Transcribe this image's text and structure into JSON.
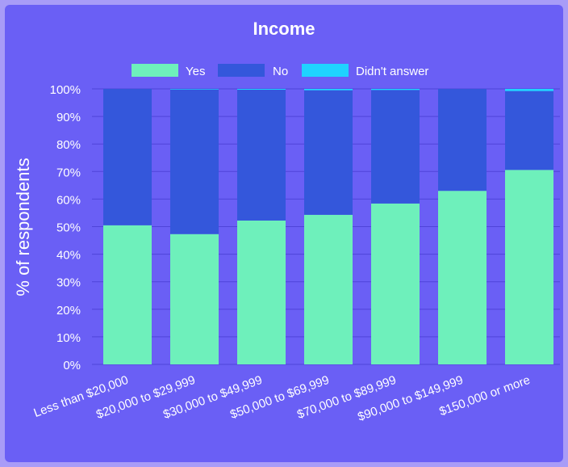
{
  "chart_data": {
    "type": "bar",
    "stacked": true,
    "title": "Income",
    "xlabel": "",
    "ylabel": "% of respondents",
    "ylim": [
      0,
      100
    ],
    "yticks": [
      "0%",
      "10%",
      "20%",
      "30%",
      "40%",
      "50%",
      "60%",
      "70%",
      "80%",
      "90%",
      "100%"
    ],
    "grid": true,
    "legend_position": "top",
    "categories": [
      "Less than $20,000",
      "$20,000 to $29,999",
      "$30,000 to $49,999",
      "$50,000 to $69,999",
      "$70,000 to $89,999",
      "$90,000 to $149,999",
      "$150,000 or more"
    ],
    "series": [
      {
        "name": "Yes",
        "color": "#6ef0bb",
        "values": [
          50.5,
          47.3,
          52.2,
          54.3,
          58.4,
          63.0,
          70.6
        ]
      },
      {
        "name": "No",
        "color": "#3457db",
        "values": [
          49.5,
          52.5,
          47.5,
          45.2,
          41.2,
          37.0,
          28.6
        ]
      },
      {
        "name": "Didn't answer",
        "color": "#1fd3ff",
        "values": [
          0.0,
          0.2,
          0.3,
          0.5,
          0.4,
          0.0,
          0.8
        ]
      }
    ]
  }
}
